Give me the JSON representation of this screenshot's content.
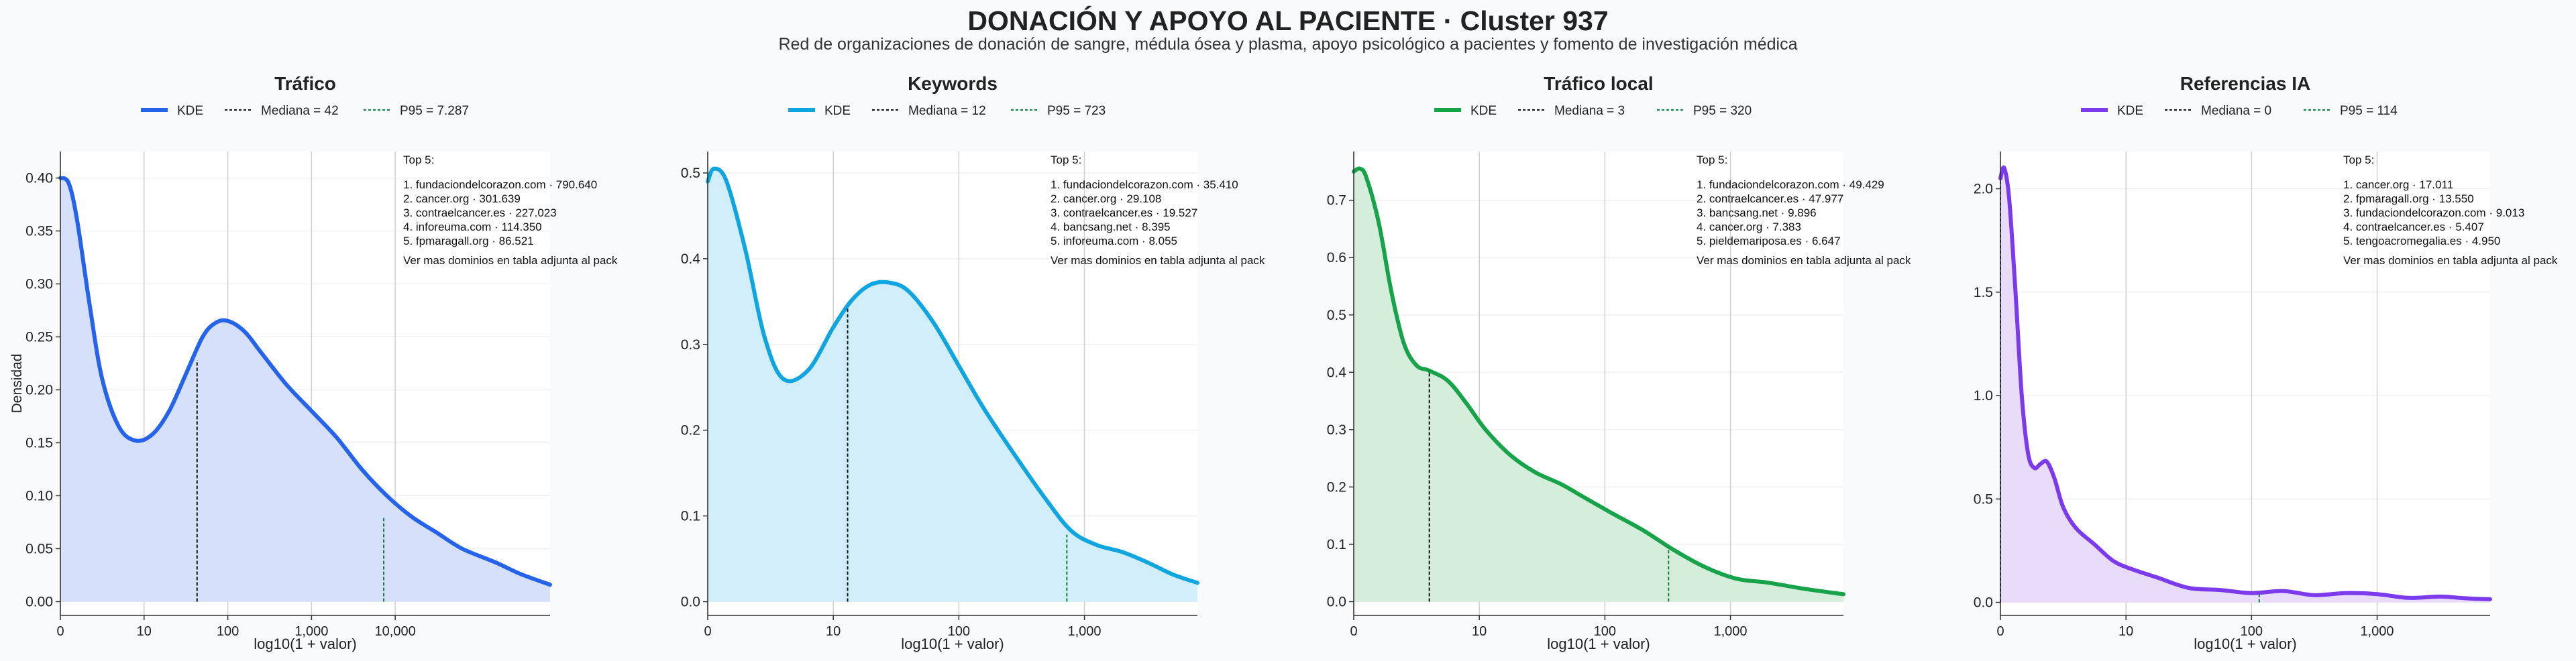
{
  "title": "DONACIÓN Y APOYO AL PACIENTE · Cluster 937",
  "subtitle": "Red de organizaciones de donación de sangre, médula ósea y plasma, apoyo psicológico a pacientes y fomento de investigación médica",
  "chart_data": [
    {
      "type": "area",
      "title": "Tráfico",
      "xlabel": "log10(1 + valor)",
      "ylabel": "Densidad",
      "x_scale": "log10(1+x)",
      "xlim": [
        0,
        5.85
      ],
      "ylim": [
        -0.013,
        0.425
      ],
      "yticks": [
        0,
        0.05,
        0.1,
        0.15,
        0.2,
        0.25,
        0.3,
        0.35,
        0.4
      ],
      "ytick_labels": [
        "0.00",
        "0.05",
        "0.10",
        "0.15",
        "0.20",
        "0.25",
        "0.30",
        "0.35",
        "0.40"
      ],
      "xticks": [
        0,
        1,
        2,
        3,
        4
      ],
      "xtick_labels": [
        "0",
        "10",
        "100",
        "1,000",
        "10,000"
      ],
      "color": "#2563eb",
      "fill": "#d6e0fb",
      "x": [
        0,
        0.1,
        0.2,
        0.35,
        0.5,
        0.7,
        0.9,
        1.1,
        1.3,
        1.5,
        1.7,
        1.85,
        2.0,
        2.2,
        2.4,
        2.7,
        3.0,
        3.3,
        3.6,
        3.9,
        4.2,
        4.5,
        4.8,
        5.2,
        5.5,
        5.85
      ],
      "y": [
        0.4,
        0.395,
        0.36,
        0.28,
        0.21,
        0.165,
        0.152,
        0.158,
        0.18,
        0.215,
        0.25,
        0.263,
        0.265,
        0.255,
        0.235,
        0.205,
        0.18,
        0.155,
        0.125,
        0.1,
        0.08,
        0.065,
        0.05,
        0.037,
        0.026,
        0.016
      ],
      "legend": {
        "kde": "KDE",
        "median": "Mediana = 42",
        "p95": "P95 = 7.287"
      },
      "median_x": 1.633,
      "median_y": 0.228,
      "p95_x": 3.863,
      "p95_y": 0.081,
      "annotation": {
        "header": "Top 5:",
        "items": [
          "1. fundaciondelcorazon.com · 790.640",
          "2. cancer.org · 301.639",
          "3. contraelcancer.es · 227.023",
          "4. inforeuma.com · 114.350",
          "5. fpmaragall.org · 86.521"
        ],
        "footer": "Ver mas dominios en tabla adjunta al pack"
      }
    },
    {
      "type": "area",
      "title": "Keywords",
      "xlabel": "log10(1 + valor)",
      "ylabel": "",
      "x_scale": "log10(1+x)",
      "xlim": [
        0,
        3.9
      ],
      "ylim": [
        -0.016,
        0.525
      ],
      "yticks": [
        0,
        0.1,
        0.2,
        0.3,
        0.4,
        0.5
      ],
      "ytick_labels": [
        "0.0",
        "0.1",
        "0.2",
        "0.3",
        "0.4",
        "0.5"
      ],
      "xticks": [
        0,
        1,
        2,
        3
      ],
      "xtick_labels": [
        "0",
        "10",
        "100",
        "1,000"
      ],
      "color": "#0ea5e0",
      "fill": "#d2eefb",
      "x": [
        0,
        0.05,
        0.15,
        0.3,
        0.45,
        0.6,
        0.8,
        1.0,
        1.15,
        1.3,
        1.45,
        1.6,
        1.8,
        2.0,
        2.2,
        2.45,
        2.7,
        2.9,
        3.1,
        3.3,
        3.5,
        3.7,
        3.9
      ],
      "y": [
        0.49,
        0.505,
        0.49,
        0.41,
        0.31,
        0.26,
        0.27,
        0.32,
        0.352,
        0.37,
        0.372,
        0.362,
        0.325,
        0.275,
        0.225,
        0.17,
        0.118,
        0.082,
        0.066,
        0.058,
        0.046,
        0.032,
        0.022
      ],
      "legend": {
        "kde": "KDE",
        "median": "Mediana = 12",
        "p95": "P95 = 723"
      },
      "median_x": 1.114,
      "median_y": 0.343,
      "p95_x": 2.86,
      "p95_y": 0.078,
      "annotation": {
        "header": "Top 5:",
        "items": [
          "1. fundaciondelcorazon.com · 35.410",
          "2. cancer.org · 29.108",
          "3. contraelcancer.es · 19.527",
          "4. bancsang.net · 8.395",
          "5. inforeuma.com · 8.055"
        ],
        "footer": "Ver mas dominios en tabla adjunta al pack"
      }
    },
    {
      "type": "area",
      "title": "Tráfico local",
      "xlabel": "log10(1 + valor)",
      "ylabel": "",
      "x_scale": "log10(1+x)",
      "xlim": [
        0,
        3.9
      ],
      "ylim": [
        -0.024,
        0.785
      ],
      "yticks": [
        0,
        0.1,
        0.2,
        0.3,
        0.4,
        0.5,
        0.6,
        0.7
      ],
      "ytick_labels": [
        "0.0",
        "0.1",
        "0.2",
        "0.3",
        "0.4",
        "0.5",
        "0.6",
        "0.7"
      ],
      "xticks": [
        0,
        1,
        2,
        3
      ],
      "xtick_labels": [
        "0",
        "10",
        "100",
        "1,000"
      ],
      "color": "#16a34a",
      "fill": "#d4eedb",
      "x": [
        0,
        0.05,
        0.1,
        0.2,
        0.3,
        0.4,
        0.5,
        0.6,
        0.75,
        0.9,
        1.05,
        1.25,
        1.45,
        1.65,
        1.85,
        2.05,
        2.3,
        2.55,
        2.8,
        3.05,
        3.3,
        3.6,
        3.9
      ],
      "y": [
        0.75,
        0.755,
        0.74,
        0.66,
        0.54,
        0.45,
        0.412,
        0.403,
        0.385,
        0.345,
        0.3,
        0.255,
        0.225,
        0.205,
        0.18,
        0.155,
        0.125,
        0.09,
        0.06,
        0.04,
        0.033,
        0.022,
        0.013
      ],
      "legend": {
        "kde": "KDE",
        "median": "Mediana = 3",
        "p95": "P95 = 320"
      },
      "median_x": 0.602,
      "median_y": 0.403,
      "p95_x": 2.507,
      "p95_y": 0.096,
      "annotation": {
        "header": "Top 5:",
        "items": [
          "1. fundaciondelcorazon.com · 49.429",
          "2. contraelcancer.es · 47.977",
          "3. bancsang.net · 9.896",
          "4. cancer.org · 7.383",
          "5. pieldemariposa.es · 6.647"
        ],
        "footer": "Ver mas dominios en tabla adjunta al pack"
      }
    },
    {
      "type": "area",
      "title": "Referencias IA",
      "xlabel": "log10(1 + valor)",
      "ylabel": "",
      "x_scale": "log10(1+x)",
      "xlim": [
        0,
        3.9
      ],
      "ylim": [
        -0.063,
        2.18
      ],
      "yticks": [
        0,
        0.5,
        1,
        1.5,
        2
      ],
      "ytick_labels": [
        "0.0",
        "0.5",
        "1.0",
        "1.5",
        "2.0"
      ],
      "xticks": [
        0,
        1,
        2,
        3
      ],
      "xtick_labels": [
        "0",
        "10",
        "100",
        "1,000"
      ],
      "color": "#7c3aed",
      "fill": "#e9dcfa",
      "x": [
        0,
        0.03,
        0.07,
        0.12,
        0.17,
        0.22,
        0.27,
        0.32,
        0.37,
        0.43,
        0.5,
        0.6,
        0.75,
        0.9,
        1.05,
        1.25,
        1.5,
        1.75,
        2.0,
        2.25,
        2.5,
        2.75,
        3.0,
        3.25,
        3.5,
        3.7,
        3.9
      ],
      "y": [
        2.05,
        2.1,
        1.95,
        1.5,
        1.0,
        0.72,
        0.65,
        0.67,
        0.68,
        0.6,
        0.46,
        0.36,
        0.28,
        0.2,
        0.16,
        0.12,
        0.07,
        0.06,
        0.045,
        0.055,
        0.035,
        0.045,
        0.04,
        0.022,
        0.028,
        0.02,
        0.015
      ],
      "legend": {
        "kde": "KDE",
        "median": "Mediana = 0",
        "p95": "P95 = 114"
      },
      "median_x": 0,
      "median_y": 2.05,
      "p95_x": 2.061,
      "p95_y": 0.045,
      "annotation": {
        "header": "Top 5:",
        "items": [
          "1. cancer.org · 17.011",
          "2. fpmaragall.org · 13.550",
          "3. fundaciondelcorazon.com · 9.013",
          "4. contraelcancer.es · 5.407",
          "5. tengoacromegalia.es · 4.950"
        ],
        "footer": "Ver mas dominios en tabla adjunta al pack"
      }
    }
  ]
}
